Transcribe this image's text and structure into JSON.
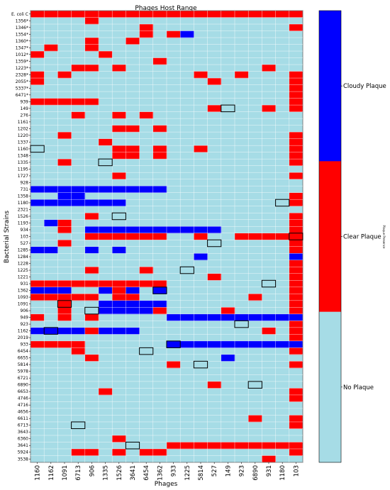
{
  "chart_data": {
    "type": "heatmap",
    "title": "Phages Host Range",
    "xlabel": "Phages",
    "ylabel": "Bacterial Strains",
    "colorbar_label": "Plaque Presence",
    "x": [
      "1160",
      "1162",
      "1091",
      "6713",
      "906",
      "1335",
      "1526",
      "3641",
      "6454",
      "1362",
      "933",
      "1225",
      "5814",
      "527",
      "149",
      "923",
      "6890",
      "931",
      "1180",
      "103"
    ],
    "y": [
      "E. coli C",
      "1356*",
      "1346*",
      "1354*",
      "1360*",
      "1347*",
      "1012*",
      "1359*",
      "1223*",
      "2328*",
      "2055*",
      "5337*",
      "6471*",
      "939",
      "149",
      "276",
      "1161",
      "1202",
      "1220",
      "1337",
      "1160",
      "1348",
      "1335",
      "1195",
      "1727",
      "928",
      "731",
      "1358",
      "1180",
      "2321",
      "1526",
      "1193",
      "934",
      "103",
      "527",
      "1285",
      "1284",
      "1228",
      "1225",
      "1221",
      "931",
      "1362",
      "1093",
      "1091",
      "906",
      "949",
      "923",
      "1162",
      "2019",
      "933",
      "6454",
      "6655",
      "5814",
      "5978",
      "6721",
      "6890",
      "6653",
      "4746",
      "4716",
      "4656",
      "6611",
      "6713",
      "3643",
      "6360",
      "3641",
      "5924",
      "3538"
    ],
    "legend": [
      {
        "label": "Cloudy Plaque",
        "color": "#0000ff",
        "value": 2
      },
      {
        "label": "Clear Plaque",
        "color": "#ff0000",
        "value": 1
      },
      {
        "label": "No Plaque",
        "color": "#a6dce6",
        "value": 0
      }
    ],
    "grid": true,
    "matrix": [
      [
        1,
        1,
        1,
        1,
        1,
        1,
        1,
        1,
        1,
        1,
        1,
        1,
        1,
        1,
        1,
        1,
        1,
        1,
        1,
        1
      ],
      [
        0,
        0,
        0,
        0,
        1,
        0,
        0,
        0,
        0,
        0,
        0,
        0,
        0,
        0,
        0,
        0,
        0,
        0,
        0,
        0
      ],
      [
        0,
        0,
        0,
        0,
        0,
        0,
        0,
        0,
        1,
        0,
        0,
        0,
        0,
        0,
        0,
        0,
        0,
        0,
        0,
        1
      ],
      [
        0,
        0,
        0,
        0,
        0,
        0,
        0,
        0,
        1,
        0,
        1,
        2,
        0,
        0,
        0,
        0,
        0,
        0,
        0,
        0
      ],
      [
        0,
        0,
        0,
        0,
        1,
        0,
        0,
        1,
        0,
        0,
        0,
        0,
        0,
        0,
        0,
        0,
        0,
        0,
        0,
        0
      ],
      [
        0,
        1,
        0,
        0,
        1,
        0,
        0,
        0,
        0,
        0,
        0,
        0,
        0,
        0,
        0,
        0,
        0,
        0,
        0,
        0
      ],
      [
        1,
        0,
        0,
        0,
        0,
        1,
        0,
        0,
        0,
        0,
        0,
        0,
        0,
        0,
        0,
        0,
        0,
        0,
        0,
        0
      ],
      [
        0,
        0,
        0,
        0,
        0,
        0,
        0,
        0,
        0,
        1,
        0,
        0,
        0,
        0,
        0,
        0,
        0,
        0,
        0,
        0
      ],
      [
        0,
        0,
        0,
        1,
        1,
        0,
        1,
        0,
        0,
        0,
        0,
        0,
        0,
        0,
        0,
        0,
        0,
        1,
        0,
        0
      ],
      [
        1,
        0,
        1,
        0,
        0,
        0,
        0,
        0,
        0,
        0,
        0,
        0,
        1,
        0,
        0,
        1,
        0,
        0,
        0,
        1
      ],
      [
        1,
        0,
        0,
        0,
        0,
        0,
        0,
        0,
        0,
        0,
        0,
        0,
        0,
        1,
        0,
        0,
        0,
        0,
        0,
        1
      ],
      [
        0,
        0,
        0,
        0,
        0,
        0,
        0,
        0,
        0,
        0,
        0,
        0,
        0,
        0,
        0,
        0,
        0,
        0,
        0,
        1
      ],
      [
        0,
        0,
        0,
        0,
        0,
        0,
        0,
        0,
        0,
        0,
        0,
        0,
        0,
        0,
        0,
        0,
        0,
        0,
        0,
        1
      ],
      [
        1,
        1,
        1,
        1,
        1,
        0,
        0,
        0,
        0,
        0,
        0,
        0,
        0,
        0,
        0,
        0,
        0,
        0,
        0,
        1
      ],
      [
        0,
        0,
        0,
        0,
        0,
        0,
        0,
        0,
        0,
        0,
        0,
        0,
        0,
        1,
        0,
        0,
        0,
        1,
        0,
        1
      ],
      [
        0,
        0,
        0,
        1,
        0,
        0,
        1,
        0,
        1,
        0,
        0,
        0,
        0,
        0,
        0,
        0,
        0,
        0,
        0,
        0
      ],
      [
        0,
        0,
        0,
        0,
        0,
        0,
        0,
        0,
        0,
        0,
        0,
        0,
        0,
        0,
        0,
        0,
        0,
        0,
        0,
        0
      ],
      [
        0,
        0,
        0,
        0,
        0,
        0,
        1,
        1,
        0,
        1,
        0,
        0,
        0,
        0,
        0,
        0,
        0,
        0,
        0,
        0
      ],
      [
        0,
        0,
        1,
        0,
        0,
        0,
        0,
        0,
        0,
        0,
        0,
        0,
        0,
        0,
        0,
        0,
        0,
        0,
        0,
        1
      ],
      [
        0,
        0,
        0,
        0,
        0,
        1,
        0,
        0,
        0,
        0,
        0,
        0,
        0,
        0,
        0,
        0,
        0,
        0,
        0,
        1
      ],
      [
        0,
        0,
        0,
        0,
        0,
        0,
        1,
        1,
        0,
        1,
        0,
        0,
        1,
        0,
        0,
        0,
        0,
        0,
        0,
        1
      ],
      [
        0,
        0,
        0,
        0,
        0,
        0,
        1,
        1,
        0,
        1,
        0,
        0,
        0,
        0,
        0,
        0,
        0,
        0,
        0,
        1
      ],
      [
        0,
        0,
        1,
        0,
        0,
        0,
        0,
        0,
        0,
        0,
        0,
        0,
        0,
        0,
        0,
        0,
        0,
        0,
        0,
        1
      ],
      [
        0,
        0,
        0,
        0,
        0,
        0,
        0,
        0,
        0,
        0,
        0,
        0,
        0,
        0,
        0,
        0,
        0,
        0,
        0,
        0
      ],
      [
        0,
        0,
        0,
        0,
        0,
        0,
        1,
        0,
        0,
        0,
        0,
        0,
        0,
        0,
        0,
        0,
        0,
        0,
        0,
        1
      ],
      [
        0,
        0,
        0,
        0,
        0,
        0,
        0,
        0,
        0,
        0,
        0,
        0,
        0,
        0,
        0,
        0,
        0,
        0,
        0,
        0
      ],
      [
        2,
        2,
        2,
        2,
        2,
        2,
        2,
        2,
        2,
        2,
        0,
        0,
        0,
        0,
        0,
        0,
        0,
        0,
        0,
        0
      ],
      [
        0,
        0,
        2,
        2,
        0,
        0,
        0,
        0,
        0,
        0,
        0,
        0,
        0,
        0,
        0,
        0,
        0,
        0,
        0,
        1
      ],
      [
        2,
        2,
        2,
        2,
        2,
        2,
        2,
        0,
        0,
        0,
        0,
        0,
        0,
        0,
        0,
        0,
        0,
        0,
        0,
        1
      ],
      [
        0,
        0,
        0,
        0,
        0,
        0,
        0,
        0,
        0,
        0,
        0,
        0,
        0,
        0,
        0,
        0,
        0,
        0,
        0,
        0
      ],
      [
        0,
        0,
        0,
        0,
        1,
        0,
        0,
        0,
        0,
        0,
        0,
        0,
        0,
        0,
        0,
        0,
        0,
        0,
        0,
        1
      ],
      [
        0,
        2,
        1,
        0,
        0,
        0,
        0,
        0,
        0,
        0,
        0,
        0,
        0,
        0,
        0,
        0,
        0,
        0,
        0,
        1
      ],
      [
        0,
        0,
        1,
        0,
        2,
        2,
        2,
        2,
        2,
        2,
        2,
        2,
        2,
        2,
        0,
        0,
        0,
        0,
        0,
        1
      ],
      [
        0,
        0,
        0,
        0,
        1,
        1,
        1,
        1,
        1,
        1,
        0,
        0,
        1,
        0,
        0,
        1,
        1,
        1,
        1,
        1
      ],
      [
        0,
        0,
        1,
        0,
        0,
        0,
        0,
        0,
        0,
        0,
        0,
        0,
        0,
        0,
        0,
        0,
        0,
        0,
        0,
        1
      ],
      [
        2,
        2,
        0,
        0,
        2,
        0,
        2,
        0,
        0,
        0,
        0,
        0,
        0,
        0,
        0,
        0,
        0,
        0,
        0,
        1
      ],
      [
        0,
        0,
        0,
        0,
        0,
        0,
        0,
        0,
        0,
        0,
        0,
        0,
        2,
        0,
        0,
        0,
        0,
        0,
        0,
        2
      ],
      [
        0,
        0,
        0,
        0,
        0,
        0,
        0,
        0,
        0,
        0,
        0,
        0,
        0,
        0,
        0,
        0,
        0,
        0,
        0,
        1
      ],
      [
        0,
        0,
        0,
        0,
        1,
        0,
        0,
        0,
        1,
        0,
        0,
        0,
        0,
        0,
        0,
        0,
        0,
        0,
        0,
        1
      ],
      [
        0,
        0,
        0,
        0,
        0,
        0,
        0,
        0,
        0,
        0,
        0,
        0,
        0,
        1,
        0,
        0,
        0,
        0,
        0,
        1
      ],
      [
        1,
        1,
        1,
        1,
        1,
        1,
        1,
        1,
        1,
        1,
        0,
        0,
        0,
        0,
        0,
        0,
        0,
        0,
        0,
        1
      ],
      [
        2,
        2,
        2,
        0,
        0,
        2,
        1,
        2,
        0,
        2,
        0,
        0,
        0,
        0,
        0,
        0,
        0,
        0,
        0,
        1
      ],
      [
        1,
        1,
        1,
        1,
        1,
        0,
        1,
        1,
        0,
        0,
        0,
        0,
        0,
        0,
        0,
        0,
        1,
        0,
        0,
        1
      ],
      [
        0,
        0,
        1,
        0,
        0,
        2,
        2,
        2,
        2,
        2,
        0,
        0,
        0,
        0,
        0,
        0,
        0,
        0,
        0,
        1
      ],
      [
        0,
        0,
        1,
        0,
        0,
        2,
        2,
        2,
        2,
        1,
        0,
        0,
        0,
        0,
        1,
        0,
        0,
        0,
        0,
        1
      ],
      [
        1,
        0,
        1,
        0,
        1,
        0,
        0,
        0,
        0,
        0,
        2,
        2,
        2,
        2,
        2,
        2,
        2,
        2,
        2,
        2
      ],
      [
        0,
        0,
        0,
        0,
        0,
        0,
        0,
        0,
        0,
        0,
        0,
        0,
        0,
        0,
        0,
        0,
        0,
        0,
        0,
        1
      ],
      [
        2,
        2,
        2,
        2,
        1,
        2,
        2,
        2,
        0,
        0,
        0,
        0,
        0,
        0,
        0,
        0,
        0,
        1,
        0,
        1
      ],
      [
        0,
        0,
        0,
        0,
        0,
        0,
        0,
        0,
        0,
        0,
        0,
        0,
        0,
        0,
        0,
        0,
        0,
        0,
        0,
        1
      ],
      [
        1,
        1,
        1,
        1,
        0,
        0,
        0,
        0,
        0,
        0,
        2,
        2,
        2,
        2,
        2,
        2,
        2,
        2,
        2,
        2
      ],
      [
        0,
        0,
        0,
        1,
        0,
        0,
        0,
        0,
        0,
        0,
        0,
        0,
        0,
        0,
        0,
        0,
        0,
        0,
        0,
        1
      ],
      [
        0,
        0,
        0,
        0,
        1,
        0,
        0,
        0,
        0,
        0,
        0,
        0,
        0,
        0,
        2,
        0,
        0,
        0,
        0,
        0
      ],
      [
        0,
        0,
        0,
        0,
        0,
        0,
        0,
        0,
        0,
        0,
        1,
        0,
        0,
        0,
        0,
        0,
        0,
        0,
        0,
        1
      ],
      [
        0,
        0,
        0,
        0,
        0,
        0,
        0,
        0,
        0,
        0,
        0,
        0,
        0,
        0,
        0,
        0,
        0,
        0,
        0,
        0
      ],
      [
        0,
        0,
        0,
        0,
        0,
        0,
        0,
        0,
        0,
        0,
        0,
        0,
        0,
        0,
        0,
        0,
        0,
        0,
        0,
        0
      ],
      [
        0,
        0,
        0,
        0,
        0,
        0,
        0,
        0,
        0,
        0,
        0,
        0,
        0,
        1,
        0,
        0,
        0,
        0,
        0,
        0
      ],
      [
        0,
        0,
        0,
        0,
        0,
        1,
        0,
        0,
        0,
        0,
        0,
        0,
        0,
        0,
        0,
        0,
        0,
        0,
        0,
        1
      ],
      [
        0,
        0,
        0,
        0,
        0,
        0,
        0,
        0,
        0,
        0,
        0,
        0,
        0,
        0,
        0,
        0,
        0,
        0,
        0,
        1
      ],
      [
        0,
        0,
        0,
        0,
        0,
        0,
        0,
        0,
        0,
        0,
        0,
        0,
        0,
        0,
        0,
        0,
        0,
        0,
        0,
        0
      ],
      [
        0,
        0,
        0,
        0,
        0,
        0,
        0,
        0,
        0,
        0,
        0,
        0,
        0,
        0,
        0,
        0,
        0,
        0,
        0,
        0
      ],
      [
        0,
        0,
        0,
        0,
        0,
        0,
        0,
        0,
        0,
        0,
        0,
        0,
        0,
        0,
        0,
        0,
        1,
        0,
        0,
        1
      ],
      [
        0,
        0,
        0,
        0,
        0,
        0,
        0,
        0,
        0,
        0,
        0,
        0,
        0,
        0,
        0,
        0,
        0,
        0,
        0,
        1
      ],
      [
        0,
        0,
        0,
        0,
        0,
        0,
        0,
        0,
        0,
        0,
        0,
        0,
        0,
        0,
        0,
        0,
        0,
        0,
        0,
        0
      ],
      [
        0,
        0,
        0,
        0,
        0,
        0,
        1,
        0,
        0,
        0,
        0,
        0,
        0,
        0,
        0,
        0,
        0,
        0,
        0,
        0
      ],
      [
        0,
        0,
        0,
        0,
        0,
        0,
        0,
        0,
        0,
        0,
        1,
        1,
        1,
        1,
        1,
        1,
        1,
        1,
        1,
        1
      ],
      [
        0,
        0,
        0,
        1,
        1,
        0,
        1,
        0,
        1,
        1,
        0,
        0,
        0,
        0,
        0,
        0,
        0,
        0,
        0,
        1
      ],
      [
        0,
        0,
        0,
        0,
        0,
        0,
        0,
        0,
        0,
        0,
        0,
        0,
        0,
        0,
        0,
        0,
        0,
        1,
        0,
        0
      ]
    ],
    "highlighted_cells": [
      {
        "strain": "149",
        "phage": "149"
      },
      {
        "strain": "1160",
        "phage": "1160"
      },
      {
        "strain": "1335",
        "phage": "1335"
      },
      {
        "strain": "1180",
        "phage": "1180"
      },
      {
        "strain": "1526",
        "phage": "1526"
      },
      {
        "strain": "103",
        "phage": "103"
      },
      {
        "strain": "527",
        "phage": "527"
      },
      {
        "strain": "1225",
        "phage": "1225"
      },
      {
        "strain": "931",
        "phage": "931"
      },
      {
        "strain": "1362",
        "phage": "1362"
      },
      {
        "strain": "1091",
        "phage": "1091"
      },
      {
        "strain": "906",
        "phage": "906"
      },
      {
        "strain": "923",
        "phage": "923"
      },
      {
        "strain": "1162",
        "phage": "1162"
      },
      {
        "strain": "933",
        "phage": "933"
      },
      {
        "strain": "6454",
        "phage": "6454"
      },
      {
        "strain": "5814",
        "phage": "5814"
      },
      {
        "strain": "6890",
        "phage": "6890"
      },
      {
        "strain": "6713",
        "phage": "6713"
      },
      {
        "strain": "3641",
        "phage": "3641"
      }
    ]
  }
}
